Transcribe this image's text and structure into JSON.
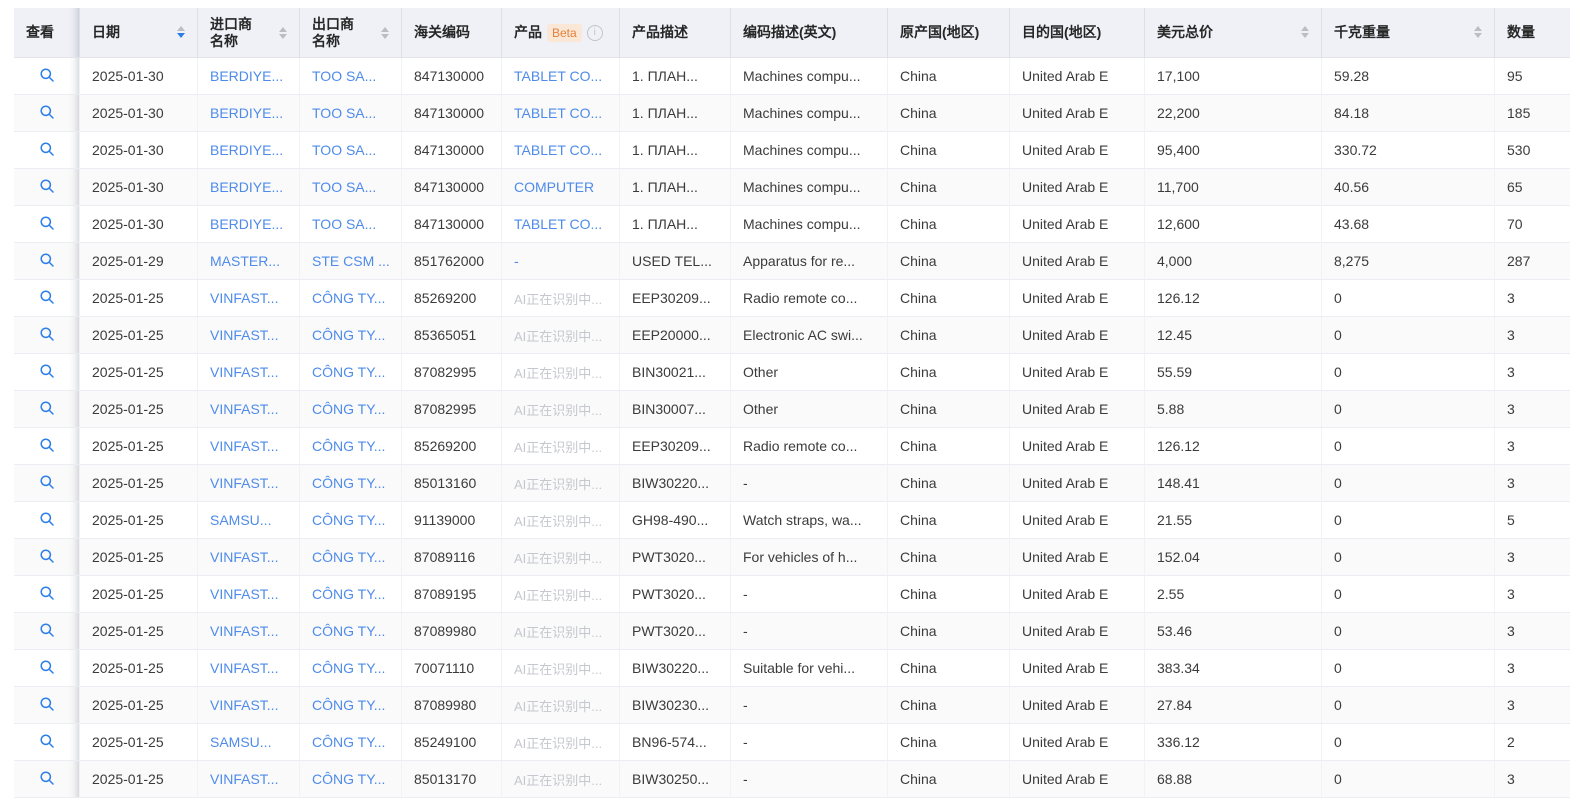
{
  "colors": {
    "link_blue": "#4e8bea",
    "search_icon_blue": "#2b7fe8",
    "sort_active_blue": "#2b7de9",
    "beta_text": "#e2823d",
    "beta_bg": "#fbe7d5",
    "pending_gray": "#c5c8ce",
    "header_bg": "#f0f1f7"
  },
  "table": {
    "columns": [
      {
        "key": "view",
        "label": "查看"
      },
      {
        "key": "date",
        "label": "日期",
        "sortable": true,
        "sort": "desc"
      },
      {
        "key": "importer",
        "label": "进口商\n名称",
        "sortable": true
      },
      {
        "key": "exporter",
        "label": "出口商\n名称",
        "sortable": true
      },
      {
        "key": "hs_code",
        "label": "海关编码"
      },
      {
        "key": "product",
        "label": "产品",
        "badge": "Beta",
        "info_icon": true
      },
      {
        "key": "product_desc",
        "label": "产品描述"
      },
      {
        "key": "code_desc",
        "label": "编码描述(英文)"
      },
      {
        "key": "origin",
        "label": "原产国(地区)"
      },
      {
        "key": "destination",
        "label": "目的国(地区)"
      },
      {
        "key": "usd_total",
        "label": "美元总价",
        "sortable": true
      },
      {
        "key": "weight_kg",
        "label": "千克重量",
        "sortable": true
      },
      {
        "key": "quantity",
        "label": "数量"
      }
    ],
    "rows": [
      {
        "date": "2025-01-30",
        "importer": "BERDIYE...",
        "exporter": "TOO SA...",
        "hs_code": "847130000",
        "product": "TABLET CO...",
        "product_type": "link",
        "product_desc": "1. ПЛАН...",
        "code_desc": "Machines compu...",
        "origin": "China",
        "destination": "United Arab E",
        "usd_total": "17,100",
        "weight_kg": "59.28",
        "quantity": "95"
      },
      {
        "date": "2025-01-30",
        "importer": "BERDIYE...",
        "exporter": "TOO SA...",
        "hs_code": "847130000",
        "product": "TABLET CO...",
        "product_type": "link",
        "product_desc": "1. ПЛАН...",
        "code_desc": "Machines compu...",
        "origin": "China",
        "destination": "United Arab E",
        "usd_total": "22,200",
        "weight_kg": "84.18",
        "quantity": "185"
      },
      {
        "date": "2025-01-30",
        "importer": "BERDIYE...",
        "exporter": "TOO SA...",
        "hs_code": "847130000",
        "product": "TABLET CO...",
        "product_type": "link",
        "product_desc": "1. ПЛАН...",
        "code_desc": "Machines compu...",
        "origin": "China",
        "destination": "United Arab E",
        "usd_total": "95,400",
        "weight_kg": "330.72",
        "quantity": "530"
      },
      {
        "date": "2025-01-30",
        "importer": "BERDIYE...",
        "exporter": "TOO SA...",
        "hs_code": "847130000",
        "product": "COMPUTER",
        "product_type": "link",
        "product_desc": "1. ПЛАН...",
        "code_desc": "Machines compu...",
        "origin": "China",
        "destination": "United Arab E",
        "usd_total": "11,700",
        "weight_kg": "40.56",
        "quantity": "65"
      },
      {
        "date": "2025-01-30",
        "importer": "BERDIYE...",
        "exporter": "TOO SA...",
        "hs_code": "847130000",
        "product": "TABLET CO...",
        "product_type": "link",
        "product_desc": "1. ПЛАН...",
        "code_desc": "Machines compu...",
        "origin": "China",
        "destination": "United Arab E",
        "usd_total": "12,600",
        "weight_kg": "43.68",
        "quantity": "70"
      },
      {
        "date": "2025-01-29",
        "importer": "MASTER...",
        "exporter": "STE CSM ...",
        "hs_code": "851762000",
        "product": "-",
        "product_type": "link",
        "product_desc": "USED TEL...",
        "code_desc": "Apparatus for re...",
        "origin": "China",
        "destination": "United Arab E",
        "usd_total": "4,000",
        "weight_kg": "8,275",
        "quantity": "287"
      },
      {
        "date": "2025-01-25",
        "importer": "VINFAST...",
        "exporter": "CÔNG TY...",
        "hs_code": "85269200",
        "product": "AI正在识别中...",
        "product_type": "pending",
        "product_desc": "EEP30209...",
        "code_desc": "Radio remote co...",
        "origin": "China",
        "destination": "United Arab E",
        "usd_total": "126.12",
        "weight_kg": "0",
        "quantity": "3"
      },
      {
        "date": "2025-01-25",
        "importer": "VINFAST...",
        "exporter": "CÔNG TY...",
        "hs_code": "85365051",
        "product": "AI正在识别中...",
        "product_type": "pending",
        "product_desc": "EEP20000...",
        "code_desc": "Electronic AC swi...",
        "origin": "China",
        "destination": "United Arab E",
        "usd_total": "12.45",
        "weight_kg": "0",
        "quantity": "3"
      },
      {
        "date": "2025-01-25",
        "importer": "VINFAST...",
        "exporter": "CÔNG TY...",
        "hs_code": "87082995",
        "product": "AI正在识别中...",
        "product_type": "pending",
        "product_desc": "BIN30021...",
        "code_desc": "Other",
        "origin": "China",
        "destination": "United Arab E",
        "usd_total": "55.59",
        "weight_kg": "0",
        "quantity": "3"
      },
      {
        "date": "2025-01-25",
        "importer": "VINFAST...",
        "exporter": "CÔNG TY...",
        "hs_code": "87082995",
        "product": "AI正在识别中...",
        "product_type": "pending",
        "product_desc": "BIN30007...",
        "code_desc": "Other",
        "origin": "China",
        "destination": "United Arab E",
        "usd_total": "5.88",
        "weight_kg": "0",
        "quantity": "3"
      },
      {
        "date": "2025-01-25",
        "importer": "VINFAST...",
        "exporter": "CÔNG TY...",
        "hs_code": "85269200",
        "product": "AI正在识别中...",
        "product_type": "pending",
        "product_desc": "EEP30209...",
        "code_desc": "Radio remote co...",
        "origin": "China",
        "destination": "United Arab E",
        "usd_total": "126.12",
        "weight_kg": "0",
        "quantity": "3"
      },
      {
        "date": "2025-01-25",
        "importer": "VINFAST...",
        "exporter": "CÔNG TY...",
        "hs_code": "85013160",
        "product": "AI正在识别中...",
        "product_type": "pending",
        "product_desc": "BIW30220...",
        "code_desc": "-",
        "origin": "China",
        "destination": "United Arab E",
        "usd_total": "148.41",
        "weight_kg": "0",
        "quantity": "3"
      },
      {
        "date": "2025-01-25",
        "importer": "SAMSU...",
        "exporter": "CÔNG TY...",
        "hs_code": "91139000",
        "product": "AI正在识别中...",
        "product_type": "pending",
        "product_desc": "GH98-490...",
        "code_desc": "Watch straps, wa...",
        "origin": "China",
        "destination": "United Arab E",
        "usd_total": "21.55",
        "weight_kg": "0",
        "quantity": "5"
      },
      {
        "date": "2025-01-25",
        "importer": "VINFAST...",
        "exporter": "CÔNG TY...",
        "hs_code": "87089116",
        "product": "AI正在识别中...",
        "product_type": "pending",
        "product_desc": "PWT3020...",
        "code_desc": "For vehicles of h...",
        "origin": "China",
        "destination": "United Arab E",
        "usd_total": "152.04",
        "weight_kg": "0",
        "quantity": "3"
      },
      {
        "date": "2025-01-25",
        "importer": "VINFAST...",
        "exporter": "CÔNG TY...",
        "hs_code": "87089195",
        "product": "AI正在识别中...",
        "product_type": "pending",
        "product_desc": "PWT3020...",
        "code_desc": "-",
        "origin": "China",
        "destination": "United Arab E",
        "usd_total": "2.55",
        "weight_kg": "0",
        "quantity": "3"
      },
      {
        "date": "2025-01-25",
        "importer": "VINFAST...",
        "exporter": "CÔNG TY...",
        "hs_code": "87089980",
        "product": "AI正在识别中...",
        "product_type": "pending",
        "product_desc": "PWT3020...",
        "code_desc": "-",
        "origin": "China",
        "destination": "United Arab E",
        "usd_total": "53.46",
        "weight_kg": "0",
        "quantity": "3"
      },
      {
        "date": "2025-01-25",
        "importer": "VINFAST...",
        "exporter": "CÔNG TY...",
        "hs_code": "70071110",
        "product": "AI正在识别中...",
        "product_type": "pending",
        "product_desc": "BIW30220...",
        "code_desc": "Suitable for vehi...",
        "origin": "China",
        "destination": "United Arab E",
        "usd_total": "383.34",
        "weight_kg": "0",
        "quantity": "3"
      },
      {
        "date": "2025-01-25",
        "importer": "VINFAST...",
        "exporter": "CÔNG TY...",
        "hs_code": "87089980",
        "product": "AI正在识别中...",
        "product_type": "pending",
        "product_desc": "BIW30230...",
        "code_desc": "-",
        "origin": "China",
        "destination": "United Arab E",
        "usd_total": "27.84",
        "weight_kg": "0",
        "quantity": "3"
      },
      {
        "date": "2025-01-25",
        "importer": "SAMSU...",
        "exporter": "CÔNG TY...",
        "hs_code": "85249100",
        "product": "AI正在识别中...",
        "product_type": "pending",
        "product_desc": "BN96-574...",
        "code_desc": "-",
        "origin": "China",
        "destination": "United Arab E",
        "usd_total": "336.12",
        "weight_kg": "0",
        "quantity": "2"
      },
      {
        "date": "2025-01-25",
        "importer": "VINFAST...",
        "exporter": "CÔNG TY...",
        "hs_code": "85013170",
        "product": "AI正在识别中...",
        "product_type": "pending",
        "product_desc": "BIW30250...",
        "code_desc": "-",
        "origin": "China",
        "destination": "United Arab E",
        "usd_total": "68.88",
        "weight_kg": "0",
        "quantity": "3"
      }
    ]
  }
}
